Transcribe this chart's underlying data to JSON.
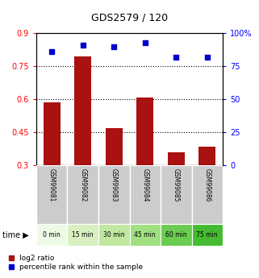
{
  "title": "GDS2579 / 120",
  "samples": [
    "GSM99081",
    "GSM99082",
    "GSM99083",
    "GSM99084",
    "GSM99085",
    "GSM99086"
  ],
  "time_labels": [
    "0 min",
    "15 min",
    "30 min",
    "45 min",
    "60 min",
    "75 min"
  ],
  "time_colors": [
    "#eefae6",
    "#d8f0c0",
    "#c0e8a0",
    "#a0e080",
    "#6acc50",
    "#44bb30"
  ],
  "log2_ratio": [
    0.585,
    0.795,
    0.47,
    0.61,
    0.36,
    0.385
  ],
  "percentile_rank": [
    86,
    91,
    90,
    93,
    82,
    82
  ],
  "bar_color": "#aa1111",
  "dot_color": "#0000cc",
  "ylim_left": [
    0.3,
    0.9
  ],
  "ylim_right": [
    0,
    100
  ],
  "yticks_left": [
    0.3,
    0.45,
    0.6,
    0.75,
    0.9
  ],
  "ytick_labels_left": [
    "0.3",
    "0.45",
    "0.6",
    "0.75",
    "0.9"
  ],
  "yticks_right": [
    0,
    25,
    50,
    75,
    100
  ],
  "ytick_labels_right": [
    "0",
    "25",
    "50",
    "75",
    "100%"
  ],
  "hlines": [
    0.45,
    0.6,
    0.75
  ],
  "bar_width": 0.55,
  "legend_labels": [
    "log2 ratio",
    "percentile rank within the sample"
  ],
  "sample_bg": "#cccccc",
  "fig_width": 3.21,
  "fig_height": 3.45
}
